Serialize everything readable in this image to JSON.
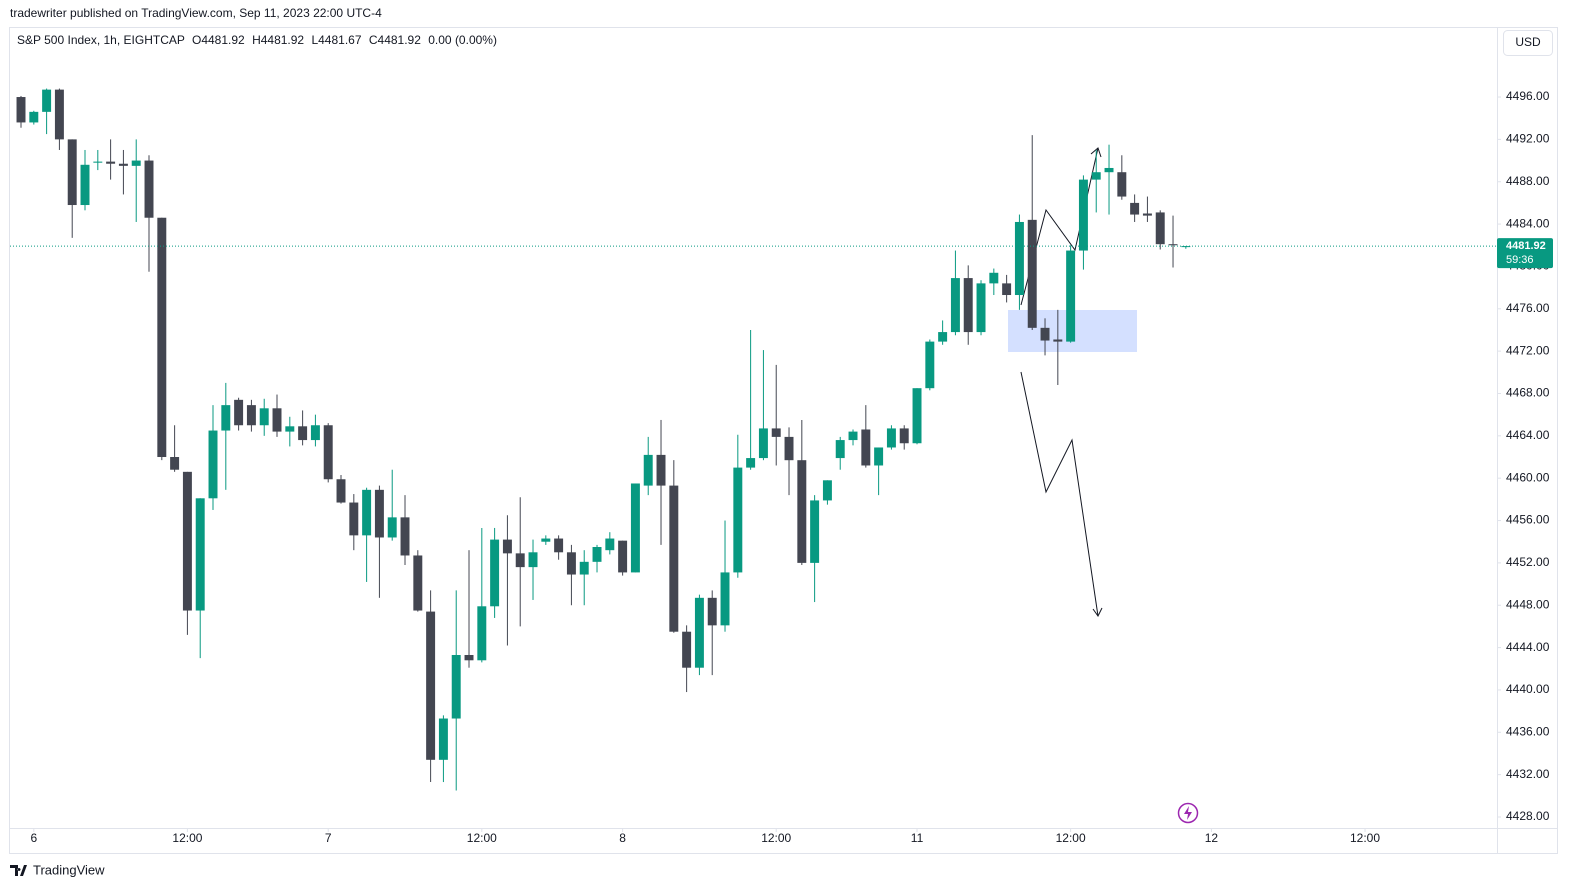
{
  "chart_data": {
    "type": "candlestick",
    "publisher": "tradewriter published on TradingView.com, Sep 11, 2023 22:00 UTC-4",
    "symbol": "S&P 500 Index, 1h, EIGHTCAP",
    "ohlc_legend": [
      "O4481.92",
      "H4481.92",
      "L4481.67",
      "C4481.92"
    ],
    "change": "0.00 (0.00%)",
    "currency": "USD",
    "last_price": 4481.92,
    "countdown": "59:36",
    "brand": "TradingView",
    "up_color": "#089981",
    "down_color": "#434651",
    "open": [
      4496,
      4493.6,
      4494.6,
      4496.7,
      4492,
      4485.8,
      4489.8,
      4489.9,
      4489.7,
      4489.5,
      4490,
      4484.6,
      4462,
      4460.6,
      4447.5,
      4458.1,
      4464.5,
      4467.4,
      4466.9,
      4465,
      4466.6,
      4464.4,
      4464.9,
      4463.6,
      4465,
      4459.9,
      4457.7,
      4454.6,
      4458.9,
      4454.4,
      4456.3,
      4452.7,
      4447.4,
      4433.4,
      4437.3,
      4443.3,
      4442.8,
      4447.9,
      4454.2,
      4452.9,
      4451.6,
      4454,
      4454.3,
      4453,
      4450.9,
      4452.1,
      4453.2,
      4454.1,
      4451.1,
      4459.3,
      4462.2,
      4459.3,
      4445.5,
      4442.1,
      4448.7,
      4446.1,
      4451.1,
      4461,
      4461.9,
      4464.7,
      4463.9,
      4461.7,
      4452,
      4457.9,
      4461.9,
      4463.6,
      4464.6,
      4461.2,
      4462.9,
      4464.7,
      4463.3,
      4468.5,
      4472.9,
      4473.8,
      4478.9,
      4473.8,
      4478.4,
      4478.4,
      4477.3,
      4484.4,
      4474.2,
      4473.1,
      4472.9,
      4481.5,
      4488.2,
      4488.9,
      4488.9,
      4486,
      4485,
      4485.1,
      4482.1,
      4481.92
    ],
    "high": [
      4496.1,
      4494.7,
      4496.8,
      4496.8,
      4492,
      4491,
      4491,
      4492,
      4491,
      4492,
      4490.5,
      4484.6,
      4465,
      4460.6,
      4458.1,
      4466.9,
      4469,
      4467.6,
      4467.4,
      4467.5,
      4467.9,
      4465.8,
      4466.4,
      4466,
      4465.2,
      4460.3,
      4458.5,
      4459.1,
      4459.3,
      4460.8,
      4458.4,
      4453.2,
      4449.4,
      4437.6,
      4449.4,
      4453.2,
      4455.3,
      4455.3,
      4456.5,
      4458.2,
      4454.2,
      4454.6,
      4454.6,
      4453.7,
      4453.2,
      4453.7,
      4454.9,
      4454.1,
      4459.5,
      4463.9,
      4465.5,
      4461.7,
      4446.1,
      4449,
      4449.4,
      4456,
      4464.1,
      4474,
      4472.1,
      4470.7,
      4464.8,
      4465.5,
      4458.4,
      4459.8,
      4463.9,
      4464.6,
      4466.9,
      4462.9,
      4465,
      4465,
      4468.5,
      4473.1,
      4474.9,
      4481.5,
      4480.1,
      4478.7,
      4479.8,
      4479.2,
      4484.9,
      4492.4,
      4475.1,
      4475.9,
      4482,
      4488.6,
      4491,
      4491.5,
      4490.5,
      4486.8,
      4486.6,
      4485.3,
      4484.8,
      4481.92
    ],
    "low": [
      4493.1,
      4493.4,
      4492.5,
      4491,
      4482.7,
      4485.3,
      4489.1,
      4488.2,
      4486.8,
      4484.2,
      4479.5,
      4461.7,
      4460.6,
      4445.2,
      4443,
      4457,
      4458.9,
      4464.5,
      4464.4,
      4464,
      4463.9,
      4463,
      4463.1,
      4463,
      4459.6,
      4457.6,
      4453.2,
      4450.2,
      4448.7,
      4454.1,
      4451.8,
      4447.4,
      4431.3,
      4431.3,
      4430.5,
      4442.1,
      4442.6,
      4446.8,
      4444.2,
      4446,
      4448.5,
      4453.7,
      4452.3,
      4448,
      4448,
      4451.1,
      4452.8,
      4450.8,
      4451.1,
      4458.4,
      4453.7,
      4445.4,
      4439.8,
      4441.4,
      4441.4,
      4445.5,
      4450.6,
      4460.8,
      4461.7,
      4461.2,
      4458.4,
      4451.8,
      4448.3,
      4457.5,
      4460.8,
      4463.1,
      4461,
      4458.4,
      4462.7,
      4462.7,
      4463.2,
      4468.3,
      4472.6,
      4473.5,
      4472.6,
      4473.5,
      4477.3,
      4476.6,
      4475.9,
      4474,
      4471.6,
      4468.8,
      4472.8,
      4479.7,
      4485.1,
      4484.9,
      4486.3,
      4484.2,
      4484.2,
      4481.6,
      4479.9,
      4481.67
    ],
    "close": [
      4493.6,
      4494.6,
      4496.7,
      4492,
      4485.8,
      4489.6,
      4489.9,
      4489.7,
      4489.5,
      4490,
      4484.6,
      4462,
      4460.8,
      4447.5,
      4458.1,
      4464.5,
      4466.9,
      4465,
      4465,
      4466.6,
      4464.4,
      4464.9,
      4463.6,
      4465,
      4459.9,
      4457.7,
      4454.6,
      4458.9,
      4454.4,
      4456.3,
      4452.7,
      4447.5,
      4433.4,
      4437.3,
      4443.3,
      4442.8,
      4447.9,
      4454.2,
      4452.9,
      4451.6,
      4453,
      4454.3,
      4453,
      4450.9,
      4452.1,
      4453.5,
      4454.3,
      4451.1,
      4459.5,
      4462.2,
      4459.3,
      4445.5,
      4442.1,
      4448.7,
      4446.1,
      4451.1,
      4461,
      4461.9,
      4464.7,
      4463.9,
      4461.7,
      4452,
      4457.9,
      4459.8,
      4463.6,
      4464.4,
      4461.2,
      4462.9,
      4464.7,
      4463.3,
      4468.5,
      4472.9,
      4473.8,
      4478.9,
      4473.8,
      4478.4,
      4479.4,
      4477.3,
      4484.2,
      4474.2,
      4473,
      4472.9,
      4481.5,
      4488.2,
      4488.9,
      4489.3,
      4486.6,
      4484.9,
      4484.8,
      4482.1,
      4482,
      4481.92
    ],
    "xlim": [
      -0.86,
      115.31
    ],
    "xticks": [
      {
        "value": 1,
        "label": "6"
      },
      {
        "value": 13,
        "label": "12:00"
      },
      {
        "value": 24,
        "label": "7"
      },
      {
        "value": 36,
        "label": "12:00"
      },
      {
        "value": 47,
        "label": "8"
      },
      {
        "value": 59,
        "label": "12:00"
      },
      {
        "value": 70,
        "label": "11"
      },
      {
        "value": 82,
        "label": "12:00"
      },
      {
        "value": 93,
        "label": "12"
      },
      {
        "value": 105,
        "label": "12:00"
      }
    ],
    "ylim": [
      4426.96,
      4502.52
    ],
    "yticks": [
      {
        "value": 4428,
        "label": "4428.00"
      },
      {
        "value": 4432,
        "label": "4432.00"
      },
      {
        "value": 4436,
        "label": "4436.00"
      },
      {
        "value": 4440,
        "label": "4440.00"
      },
      {
        "value": 4444,
        "label": "4444.00"
      },
      {
        "value": 4448,
        "label": "4448.00"
      },
      {
        "value": 4452,
        "label": "4452.00"
      },
      {
        "value": 4456,
        "label": "4456.00"
      },
      {
        "value": 4460,
        "label": "4460.00"
      },
      {
        "value": 4464,
        "label": "4464.00"
      },
      {
        "value": 4468,
        "label": "4468.00"
      },
      {
        "value": 4472,
        "label": "4472.00"
      },
      {
        "value": 4476,
        "label": "4476.00"
      },
      {
        "value": 4480,
        "label": "4480.00"
      },
      {
        "value": 4484,
        "label": "4484.00"
      },
      {
        "value": 4488,
        "label": "4488.00"
      },
      {
        "value": 4492,
        "label": "4492.00"
      },
      {
        "value": 4496,
        "label": "4496.00"
      }
    ],
    "grid": false
  }
}
